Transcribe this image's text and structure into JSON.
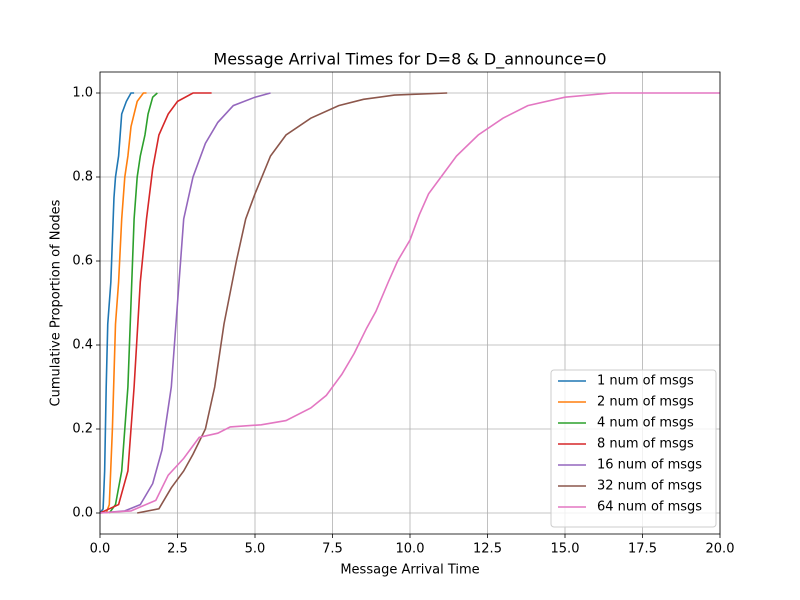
{
  "chart_data": {
    "type": "line",
    "title": "Message Arrival Times for D=8 & D_announce=0",
    "xlabel": "Message Arrival Time",
    "ylabel": "Cumulative Proportion of Nodes",
    "xlim": [
      0,
      20
    ],
    "ylim": [
      -0.05,
      1.05
    ],
    "xticks": [
      {
        "value": 0,
        "label": "0.0"
      },
      {
        "value": 2.5,
        "label": "2.5"
      },
      {
        "value": 5,
        "label": "5.0"
      },
      {
        "value": 7.5,
        "label": "7.5"
      },
      {
        "value": 10,
        "label": "10.0"
      },
      {
        "value": 12.5,
        "label": "12.5"
      },
      {
        "value": 15,
        "label": "15.0"
      },
      {
        "value": 17.5,
        "label": "17.5"
      },
      {
        "value": 20,
        "label": "20.0"
      }
    ],
    "yticks": [
      {
        "value": 0,
        "label": "0.0"
      },
      0.2,
      0.4,
      0.6,
      0.8,
      {
        "value": 1,
        "label": "1.0"
      }
    ],
    "grid": true,
    "legend": "lower right",
    "series": [
      {
        "name": "1 num of msgs",
        "color": "#1f77b4",
        "x": [
          0.0,
          0.1,
          0.15,
          0.2,
          0.25,
          0.35,
          0.45,
          0.5,
          0.6,
          0.7,
          0.85,
          1.0,
          1.1
        ],
        "values": [
          0,
          0.01,
          0.1,
          0.3,
          0.45,
          0.55,
          0.75,
          0.8,
          0.85,
          0.95,
          0.98,
          1.0,
          1.0
        ]
      },
      {
        "name": "2 num of msgs",
        "color": "#ff7f0e",
        "x": [
          0.2,
          0.3,
          0.4,
          0.5,
          0.6,
          0.7,
          0.8,
          0.9,
          1.0,
          1.2,
          1.4,
          1.5
        ],
        "values": [
          0,
          0.02,
          0.2,
          0.45,
          0.55,
          0.7,
          0.8,
          0.85,
          0.92,
          0.98,
          1.0,
          1.0
        ]
      },
      {
        "name": "4 num of msgs",
        "color": "#2ca02c",
        "x": [
          0.3,
          0.5,
          0.7,
          0.9,
          1.0,
          1.1,
          1.2,
          1.3,
          1.45,
          1.55,
          1.7,
          1.85
        ],
        "values": [
          0,
          0.02,
          0.1,
          0.3,
          0.5,
          0.7,
          0.8,
          0.85,
          0.9,
          0.95,
          0.99,
          1.0
        ]
      },
      {
        "name": "8 num of msgs",
        "color": "#d62728",
        "x": [
          0.0,
          0.3,
          0.6,
          0.9,
          1.1,
          1.3,
          1.5,
          1.7,
          1.9,
          2.2,
          2.5,
          3.0,
          3.6
        ],
        "values": [
          0,
          0.01,
          0.02,
          0.1,
          0.3,
          0.55,
          0.7,
          0.82,
          0.9,
          0.95,
          0.98,
          1.0,
          1.0
        ]
      },
      {
        "name": "16 num of msgs",
        "color": "#9467bd",
        "x": [
          0,
          0.8,
          1.3,
          1.7,
          2.0,
          2.3,
          2.5,
          2.7,
          3.0,
          3.4,
          3.8,
          4.3,
          5.0,
          5.5
        ],
        "values": [
          0,
          0.005,
          0.02,
          0.07,
          0.15,
          0.3,
          0.5,
          0.7,
          0.8,
          0.88,
          0.93,
          0.97,
          0.99,
          1.0
        ]
      },
      {
        "name": "32 num of msgs",
        "color": "#8c564b",
        "x": [
          1.2,
          1.9,
          2.3,
          2.7,
          3.0,
          3.4,
          3.7,
          4.0,
          4.4,
          4.7,
          5.0,
          5.5,
          6.0,
          6.8,
          7.7,
          8.5,
          9.5,
          11.2
        ],
        "values": [
          0,
          0.01,
          0.06,
          0.1,
          0.14,
          0.2,
          0.3,
          0.45,
          0.6,
          0.7,
          0.76,
          0.85,
          0.9,
          0.94,
          0.97,
          0.985,
          0.995,
          1.0
        ]
      },
      {
        "name": "64 num of msgs",
        "color": "#e377c2",
        "x": [
          0,
          1.0,
          1.8,
          2.2,
          2.7,
          3.2,
          3.8,
          4.2,
          5.2,
          6.0,
          6.8,
          7.3,
          7.8,
          8.2,
          8.6,
          8.9,
          9.3,
          9.6,
          10.0,
          10.3,
          10.6,
          11.0,
          11.5,
          12.2,
          13.0,
          13.8,
          15.0,
          16.5,
          20
        ],
        "values": [
          0,
          0.005,
          0.03,
          0.09,
          0.13,
          0.18,
          0.19,
          0.205,
          0.21,
          0.22,
          0.25,
          0.28,
          0.33,
          0.38,
          0.44,
          0.48,
          0.55,
          0.6,
          0.65,
          0.71,
          0.76,
          0.8,
          0.85,
          0.9,
          0.94,
          0.97,
          0.99,
          1.0,
          1.0
        ]
      }
    ]
  }
}
